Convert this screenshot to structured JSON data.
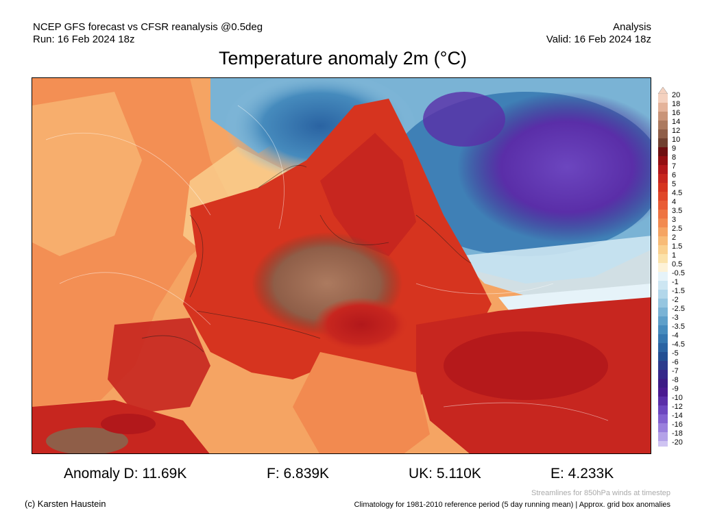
{
  "header": {
    "model_line": "NCEP GFS forecast vs CFSR reanalysis @0.5deg",
    "run_line": "Run: 16 Feb 2024 18z",
    "type_line": "Analysis",
    "valid_line": "Valid: 16 Feb 2024 18z"
  },
  "title": "Temperature anomaly 2m (°C)",
  "colorbar": {
    "labels": [
      "20",
      "18",
      "16",
      "14",
      "12",
      "10",
      "9",
      "8",
      "7",
      "6",
      "5",
      "4.5",
      "4",
      "3.5",
      "3",
      "2.5",
      "2",
      "1.5",
      "1",
      "0.5",
      "-0.5",
      "-1",
      "-1.5",
      "-2",
      "-2.5",
      "-3",
      "-3.5",
      "-4",
      "-4.5",
      "-5",
      "-6",
      "-7",
      "-8",
      "-9",
      "-10",
      "-12",
      "-14",
      "-16",
      "-18",
      "-20"
    ],
    "colors": [
      "#f4d1bf",
      "#e4b39a",
      "#c99478",
      "#ac7a5f",
      "#8f5e48",
      "#70402f",
      "#6e0f10",
      "#930f12",
      "#b2181b",
      "#c7261f",
      "#d6341f",
      "#e04729",
      "#e95c35",
      "#ee7442",
      "#f28a50",
      "#f5a463",
      "#f8bb77",
      "#fad08e",
      "#fbe2aa",
      "#fdf2d8",
      "#e6f3f9",
      "#cde6f2",
      "#b2d7ea",
      "#96c6e0",
      "#7ab3d5",
      "#5e9fc9",
      "#468bbd",
      "#3577b0",
      "#2a63a2",
      "#224f93",
      "#2b3b8c",
      "#35278a",
      "#3c1b85",
      "#4a1a90",
      "#5a2ea8",
      "#6c46bf",
      "#8261d0",
      "#9a80dd",
      "#b4a2e8",
      "#cfc4f2"
    ]
  },
  "stats": {
    "d": "Anomaly D: 11.69K",
    "f": "F: 6.839K",
    "uk": "UK: 5.110K",
    "e": "E: 4.233K"
  },
  "footer": {
    "credit": "(c) Karsten Haustein",
    "streamlines_note": "Streamlines for 850hPa winds at timestep",
    "climatology_note": "Climatology for 1981-2010 reference period (5 day running mean) | Approx. grid box anomalies"
  }
}
